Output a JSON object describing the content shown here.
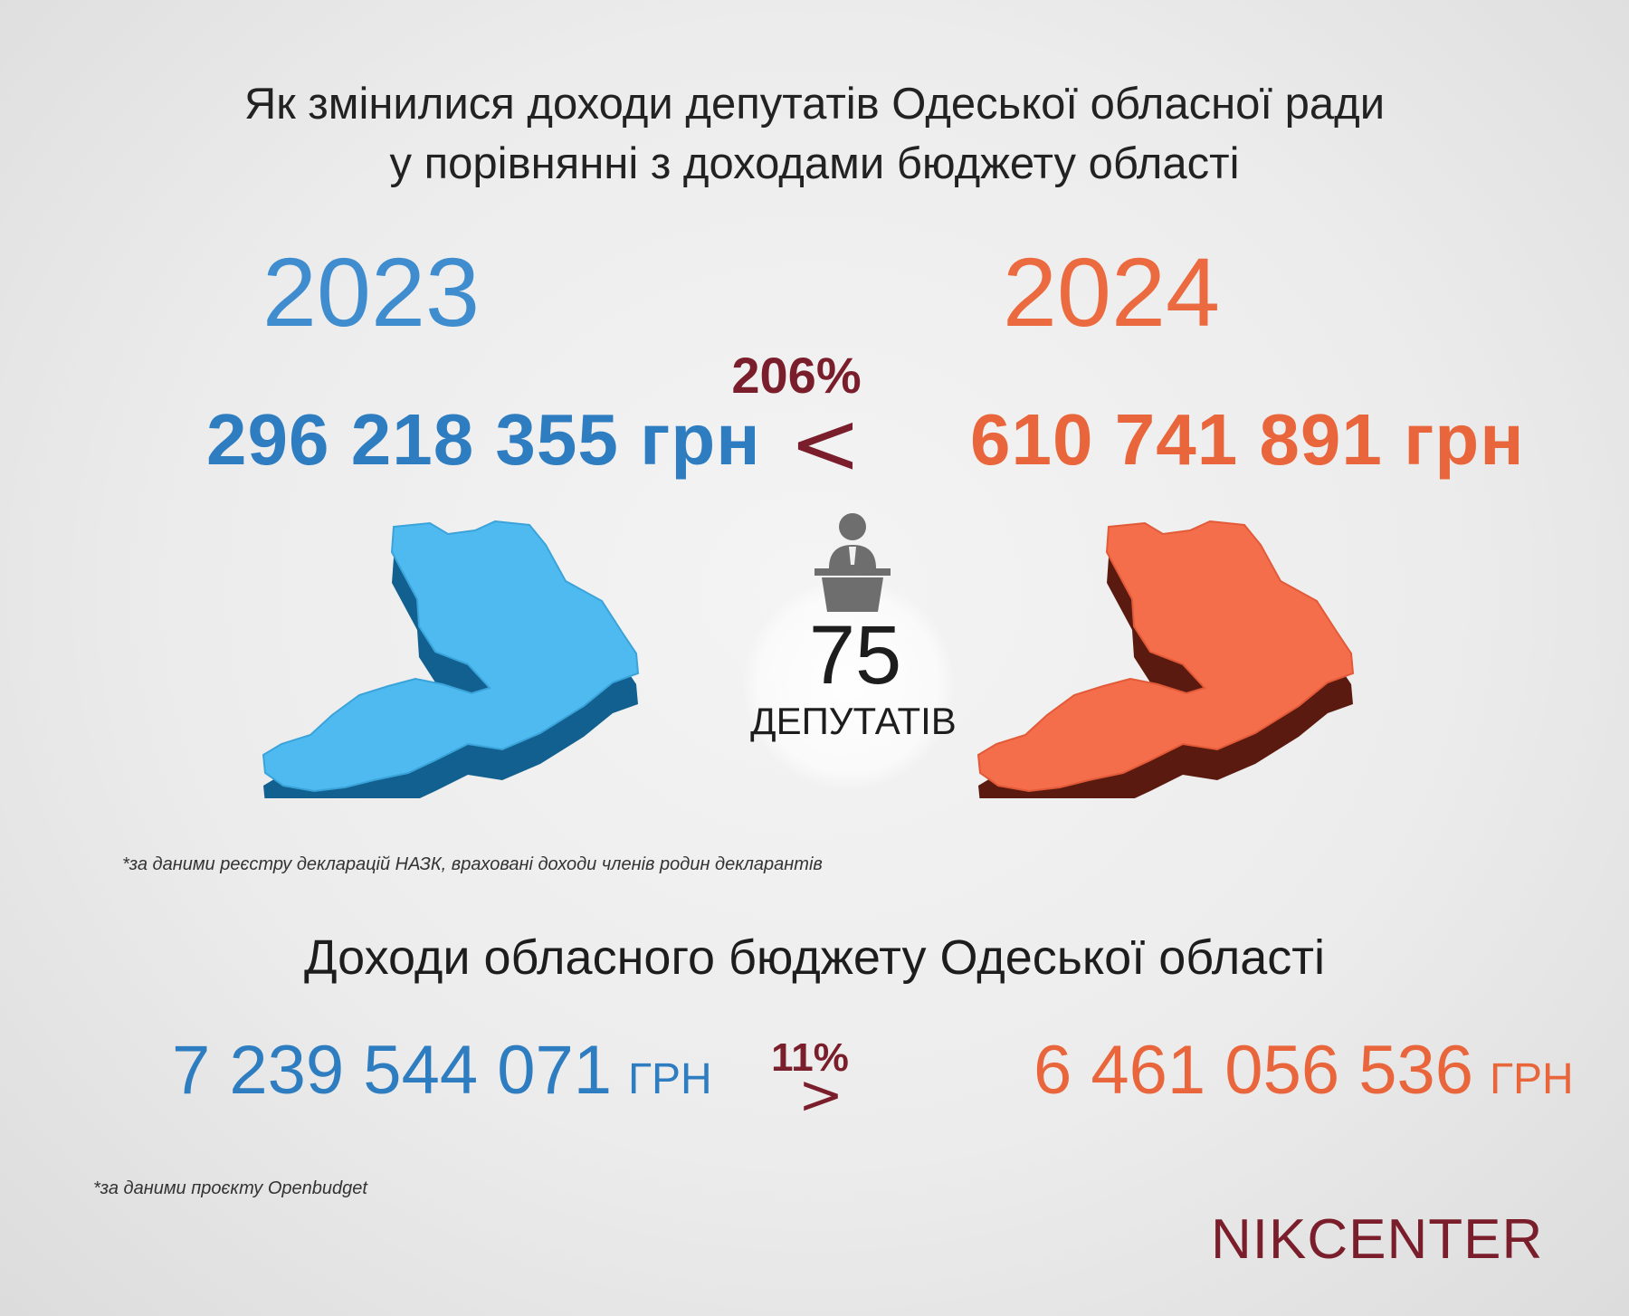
{
  "header": {
    "title_line1": "Як змінилися доходи депутатів Одеської обласної ради",
    "title_line2": "у порівнянні з доходами бюджету області"
  },
  "deputies_income": {
    "year_2023": "2023",
    "year_2024": "2024",
    "amount_2023": "296 218 355 грн",
    "amount_2024": "610 741 891 грн",
    "change_percent": "206%",
    "comparison_sign": "<",
    "deputies_count": "75",
    "deputies_label": "ДЕПУТАТІВ",
    "footnote": "*за даними реєстру декларацій НАЗК, враховані доходи членів родин декларантів"
  },
  "budget": {
    "title": "Доходи обласного бюджету Одеської області",
    "amount_2023": "7 239 544 071",
    "amount_2024": "6 461 056 536",
    "unit": "ГРН",
    "change_percent": "11%",
    "comparison_sign": ">",
    "footnote": "*за даними проєкту Openbudget"
  },
  "logo": "NIKCENTER",
  "colors": {
    "blue": "#2f7dc1",
    "light_blue_map": "#4fbaf0",
    "orange": "#e9663c",
    "orange_map": "#f46e4b",
    "maroon": "#7a1e2b"
  },
  "icons": {
    "speaker": "speaker-at-podium-icon",
    "map": "odesa-oblast-map"
  }
}
